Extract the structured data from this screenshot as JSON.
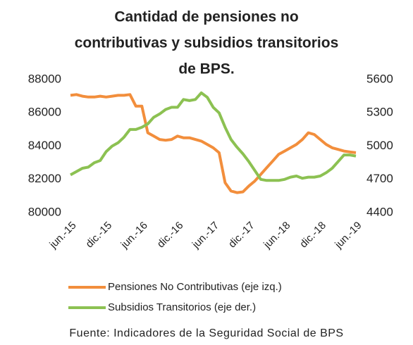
{
  "chart_data": {
    "type": "line",
    "title": [
      "Cantidad de pensiones no",
      "contributivas y subsidios transitorios",
      "de BPS."
    ],
    "categories": [
      "jun.-15",
      null,
      null,
      null,
      null,
      null,
      "dic.-15",
      null,
      null,
      null,
      null,
      null,
      "jun.-16",
      null,
      null,
      null,
      null,
      null,
      "dic.-16",
      null,
      null,
      null,
      null,
      null,
      "jun.-17",
      null,
      null,
      null,
      null,
      null,
      "dic.-17",
      null,
      null,
      null,
      null,
      null,
      "jun.-18",
      null,
      null,
      null,
      null,
      null,
      "dic.-18",
      null,
      null,
      null,
      null,
      null,
      "jun.-19"
    ],
    "series": [
      {
        "name": "Pensiones No Contributivas (eje izq.)",
        "color": "#f28e3c",
        "axis": "y",
        "values": [
          87050,
          87100,
          87000,
          86950,
          86950,
          87000,
          86950,
          87000,
          87050,
          87050,
          87100,
          86400,
          86400,
          84800,
          84600,
          84400,
          84350,
          84400,
          84600,
          84500,
          84500,
          84400,
          84300,
          84100,
          83900,
          83600,
          81800,
          81300,
          81200,
          81250,
          81600,
          81900,
          82300,
          82700,
          83100,
          83500,
          83700,
          83900,
          84100,
          84400,
          84800,
          84700,
          84400,
          84100,
          83900,
          83800,
          83700,
          83650,
          83600
        ]
      },
      {
        "name": "Subsidios Transitorios (eje der.)",
        "color": "#8cc152",
        "axis": "y2",
        "values": [
          4740,
          4770,
          4800,
          4810,
          4850,
          4870,
          4950,
          5000,
          5030,
          5080,
          5150,
          5150,
          5170,
          5200,
          5260,
          5290,
          5330,
          5350,
          5350,
          5420,
          5410,
          5420,
          5480,
          5440,
          5350,
          5300,
          5170,
          5060,
          4990,
          4930,
          4860,
          4780,
          4700,
          4690,
          4690,
          4690,
          4700,
          4720,
          4730,
          4710,
          4720,
          4720,
          4730,
          4760,
          4800,
          4860,
          4920,
          4920,
          4910
        ]
      }
    ],
    "ylim": [
      80000,
      88000
    ],
    "yticks": [
      80000,
      82000,
      84000,
      86000,
      88000
    ],
    "y2lim": [
      4400,
      5600
    ],
    "y2ticks": [
      4400,
      4700,
      5000,
      5300,
      5600
    ],
    "legend": "bottom",
    "source": "Fuente:  Indicadores de la Seguridad Social de BPS"
  }
}
